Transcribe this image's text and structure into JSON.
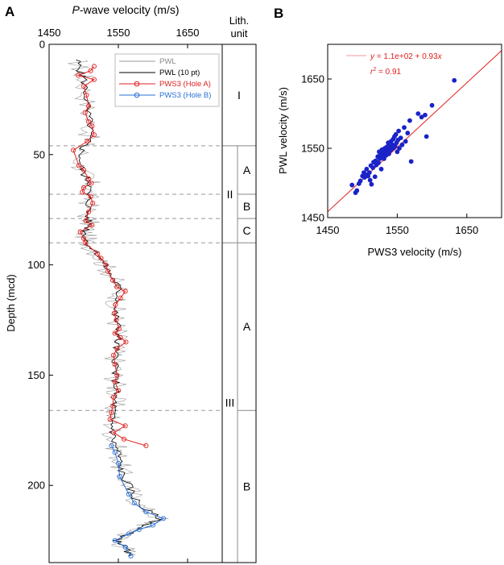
{
  "panels": {
    "a": {
      "letter": "A",
      "xlabel_italic": "P",
      "xlabel_rest": "-wave velocity (m/s)",
      "ylabel": "Depth (mcd)",
      "lith_header_line1": "Lith.",
      "lith_header_line2": "unit"
    },
    "b": {
      "letter": "B",
      "xlabel": "PWS3 velocity (m/s)",
      "ylabel": "PWL velocity (m/s)"
    }
  },
  "chart_data": [
    {
      "type": "line",
      "xlim": [
        1450,
        1700
      ],
      "ylim": [
        0,
        235
      ],
      "y_inverted": true,
      "x_ticks": [
        1450,
        1550,
        1650
      ],
      "y_ticks": [
        0,
        50,
        100,
        150,
        200
      ],
      "legend_placement": "top-right",
      "legend": [
        "PWL",
        "PWL (10 pt)",
        "PWS3 (Hole A)",
        "PWS3 (Hole B)"
      ],
      "colors": {
        "pwl": "#999999",
        "pwl10": "#000000",
        "hole_a": "#e02020",
        "hole_b": "#2a6fd6"
      },
      "series": [
        {
          "name": "PWS3 (Hole A)",
          "points": [
            [
              1515,
              10
            ],
            [
              1510,
              12
            ],
            [
              1492,
              14
            ],
            [
              1515,
              16
            ],
            [
              1500,
              19
            ],
            [
              1504,
              23
            ],
            [
              1507,
              28
            ],
            [
              1502,
              31
            ],
            [
              1507,
              35
            ],
            [
              1512,
              37
            ],
            [
              1515,
              41
            ],
            [
              1505,
              44
            ],
            [
              1485,
              48
            ],
            [
              1493,
              55
            ],
            [
              1500,
              57
            ],
            [
              1507,
              61
            ],
            [
              1511,
              63
            ],
            [
              1500,
              65
            ],
            [
              1498,
              67
            ],
            [
              1510,
              69
            ],
            [
              1513,
              72
            ],
            [
              1507,
              76
            ],
            [
              1503,
              80
            ],
            [
              1512,
              82
            ],
            [
              1495,
              85
            ],
            [
              1500,
              88
            ],
            [
              1502,
              90
            ],
            [
              1520,
              95
            ],
            [
              1525,
              97
            ],
            [
              1532,
              100
            ],
            [
              1535,
              103
            ],
            [
              1542,
              107
            ],
            [
              1548,
              110
            ],
            [
              1560,
              112
            ],
            [
              1553,
              115
            ],
            [
              1546,
              118
            ],
            [
              1544,
              122
            ],
            [
              1547,
              125
            ],
            [
              1551,
              129
            ],
            [
              1545,
              131
            ],
            [
              1553,
              133
            ],
            [
              1561,
              135
            ],
            [
              1548,
              138
            ],
            [
              1543,
              141
            ],
            [
              1545,
              145
            ],
            [
              1548,
              150
            ],
            [
              1545,
              153
            ],
            [
              1550,
              157
            ],
            [
              1543,
              160
            ],
            [
              1542,
              164
            ],
            [
              1540,
              167
            ],
            [
              1538,
              170
            ],
            [
              1560,
              173
            ],
            [
              1543,
              176
            ],
            [
              1558,
              179
            ],
            [
              1590,
              182
            ]
          ]
        },
        {
          "name": "PWS3 (Hole B)",
          "points": [
            [
              1540,
              182
            ],
            [
              1545,
              185
            ],
            [
              1550,
              190
            ],
            [
              1552,
              196
            ],
            [
              1565,
              204
            ],
            [
              1573,
              208
            ],
            [
              1590,
              212
            ],
            [
              1615,
              215
            ],
            [
              1600,
              218
            ],
            [
              1580,
              220
            ],
            [
              1565,
              222
            ],
            [
              1545,
              225
            ],
            [
              1560,
              228
            ],
            [
              1568,
              232
            ]
          ]
        },
        {
          "name": "PWL",
          "points": [
            [
              1490,
              7
            ],
            [
              1495,
              12
            ],
            [
              1500,
              15
            ],
            [
              1503,
              22
            ],
            [
              1505,
              30
            ],
            [
              1510,
              38
            ],
            [
              1505,
              44
            ],
            [
              1497,
              48
            ],
            [
              1495,
              55
            ],
            [
              1502,
              60
            ],
            [
              1510,
              63
            ],
            [
              1505,
              68
            ],
            [
              1508,
              72
            ],
            [
              1505,
              78
            ],
            [
              1508,
              82
            ],
            [
              1502,
              86
            ],
            [
              1505,
              90
            ],
            [
              1520,
              95
            ],
            [
              1530,
              100
            ],
            [
              1540,
              105
            ],
            [
              1550,
              110
            ],
            [
              1550,
              115
            ],
            [
              1545,
              120
            ],
            [
              1547,
              125
            ],
            [
              1550,
              130
            ],
            [
              1548,
              135
            ],
            [
              1545,
              140
            ],
            [
              1547,
              145
            ],
            [
              1545,
              150
            ],
            [
              1547,
              155
            ],
            [
              1545,
              160
            ],
            [
              1543,
              165
            ],
            [
              1540,
              170
            ],
            [
              1542,
              175
            ],
            [
              1543,
              180
            ],
            [
              1550,
              185
            ],
            [
              1552,
              190
            ],
            [
              1555,
              195
            ],
            [
              1565,
              200
            ],
            [
              1572,
              205
            ],
            [
              1585,
              210
            ],
            [
              1610,
              215
            ],
            [
              1590,
              218
            ],
            [
              1570,
              221
            ],
            [
              1548,
              225
            ],
            [
              1560,
              228
            ],
            [
              1565,
              232
            ]
          ]
        },
        {
          "name": "PWL (10 pt)",
          "points": [
            [
              1490,
              7
            ],
            [
              1495,
              12
            ],
            [
              1500,
              15
            ],
            [
              1503,
              22
            ],
            [
              1505,
              30
            ],
            [
              1510,
              38
            ],
            [
              1505,
              44
            ],
            [
              1497,
              48
            ],
            [
              1495,
              55
            ],
            [
              1502,
              60
            ],
            [
              1510,
              63
            ],
            [
              1505,
              68
            ],
            [
              1508,
              72
            ],
            [
              1505,
              78
            ],
            [
              1508,
              82
            ],
            [
              1502,
              86
            ],
            [
              1505,
              90
            ],
            [
              1520,
              95
            ],
            [
              1530,
              100
            ],
            [
              1540,
              105
            ],
            [
              1550,
              110
            ],
            [
              1550,
              115
            ],
            [
              1545,
              120
            ],
            [
              1547,
              125
            ],
            [
              1550,
              130
            ],
            [
              1548,
              135
            ],
            [
              1545,
              140
            ],
            [
              1547,
              145
            ],
            [
              1545,
              150
            ],
            [
              1547,
              155
            ],
            [
              1545,
              160
            ],
            [
              1543,
              165
            ],
            [
              1540,
              170
            ],
            [
              1542,
              175
            ],
            [
              1543,
              180
            ],
            [
              1550,
              185
            ],
            [
              1552,
              190
            ],
            [
              1555,
              195
            ],
            [
              1565,
              200
            ],
            [
              1572,
              205
            ],
            [
              1585,
              210
            ],
            [
              1610,
              215
            ],
            [
              1590,
              218
            ],
            [
              1570,
              221
            ],
            [
              1548,
              225
            ],
            [
              1560,
              228
            ],
            [
              1565,
              232
            ]
          ]
        }
      ],
      "unit_boundaries_mcd": [
        46,
        68,
        79,
        90,
        166
      ],
      "lith_units": [
        {
          "label": "I",
          "top": 0,
          "bottom": 46
        },
        {
          "label": "II",
          "top": 46,
          "bottom": 90,
          "subunits": [
            {
              "label": "A",
              "top": 46,
              "bottom": 68
            },
            {
              "label": "B",
              "top": 68,
              "bottom": 79
            },
            {
              "label": "C",
              "top": 79,
              "bottom": 90
            }
          ]
        },
        {
          "label": "III",
          "top": 90,
          "bottom": 235,
          "subunits": [
            {
              "label": "A",
              "top": 90,
              "bottom": 166
            },
            {
              "label": "B",
              "top": 166,
              "bottom": 235
            }
          ]
        }
      ]
    },
    {
      "type": "scatter",
      "xlim": [
        1450,
        1700
      ],
      "ylim": [
        1450,
        1700
      ],
      "x_ticks": [
        1450,
        1550,
        1650
      ],
      "y_ticks": [
        1450,
        1550,
        1650
      ],
      "point_color": "#1a22c8",
      "line_color": "#e02020",
      "equation_prefix": "y",
      "equation_rest": " = 1.1e+02 + 0.93",
      "equation_x": "x",
      "r2_r": "r",
      "r2_exp": "2",
      "r2_rest": " = 0.91",
      "fit": {
        "intercept": 110,
        "slope": 0.93
      },
      "points": [
        [
          1485,
          1497
        ],
        [
          1490,
          1486
        ],
        [
          1492,
          1489
        ],
        [
          1495,
          1499
        ],
        [
          1497,
          1503
        ],
        [
          1500,
          1510
        ],
        [
          1502,
          1515
        ],
        [
          1503,
          1508
        ],
        [
          1505,
          1512
        ],
        [
          1506,
          1520
        ],
        [
          1508,
          1510
        ],
        [
          1510,
          1515
        ],
        [
          1511,
          1504
        ],
        [
          1512,
          1525
        ],
        [
          1513,
          1498
        ],
        [
          1515,
          1522
        ],
        [
          1516,
          1530
        ],
        [
          1518,
          1509
        ],
        [
          1519,
          1532
        ],
        [
          1520,
          1526
        ],
        [
          1522,
          1538
        ],
        [
          1523,
          1529
        ],
        [
          1524,
          1545
        ],
        [
          1525,
          1535
        ],
        [
          1526,
          1541
        ],
        [
          1527,
          1520
        ],
        [
          1528,
          1548
        ],
        [
          1529,
          1539
        ],
        [
          1530,
          1544
        ],
        [
          1531,
          1535
        ],
        [
          1532,
          1550
        ],
        [
          1533,
          1545
        ],
        [
          1534,
          1540
        ],
        [
          1535,
          1552
        ],
        [
          1536,
          1548
        ],
        [
          1537,
          1558
        ],
        [
          1538,
          1542
        ],
        [
          1539,
          1553
        ],
        [
          1540,
          1547
        ],
        [
          1541,
          1560
        ],
        [
          1542,
          1549
        ],
        [
          1543,
          1555
        ],
        [
          1544,
          1563
        ],
        [
          1545,
          1551
        ],
        [
          1546,
          1567
        ],
        [
          1547,
          1554
        ],
        [
          1548,
          1570
        ],
        [
          1549,
          1558
        ],
        [
          1550,
          1545
        ],
        [
          1551,
          1562
        ],
        [
          1552,
          1575
        ],
        [
          1553,
          1550
        ],
        [
          1555,
          1565
        ],
        [
          1557,
          1555
        ],
        [
          1560,
          1580
        ],
        [
          1562,
          1560
        ],
        [
          1565,
          1572
        ],
        [
          1568,
          1590
        ],
        [
          1570,
          1531
        ],
        [
          1580,
          1600
        ],
        [
          1585,
          1595
        ],
        [
          1590,
          1598
        ],
        [
          1592,
          1567
        ],
        [
          1600,
          1612
        ],
        [
          1632,
          1648
        ]
      ]
    }
  ]
}
